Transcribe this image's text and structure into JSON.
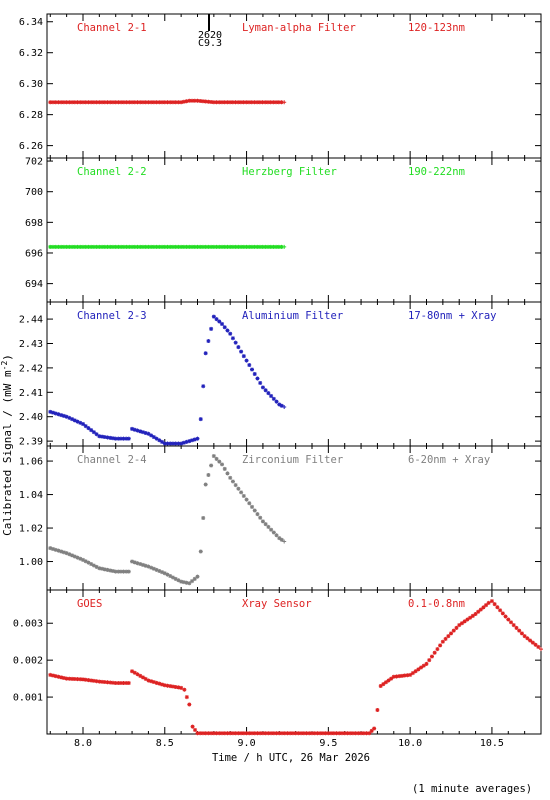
{
  "footer_note": "(1 minute averages)",
  "y_axis_label": "Calibrated Signal / (mW m",
  "y_axis_label_sup": "-2",
  "y_axis_label_end": ")",
  "x_axis_label": "Time / h UTC, 26 Mar 2026",
  "marker": {
    "line1": "2620",
    "line2": "C9.3"
  },
  "chart_data": [
    {
      "type": "scatter",
      "panel": "Channel 2-1",
      "label_left": "Channel 2-1",
      "label_mid": "Lyman-alpha Filter",
      "label_right": "120-123nm",
      "color": "#dd2222",
      "ylim": [
        6.252,
        6.345
      ],
      "yticks": [
        6.26,
        6.28,
        6.3,
        6.32,
        6.34
      ],
      "ytick_labels": [
        "6.26",
        "6.28",
        "6.30",
        "6.32",
        "6.34"
      ],
      "x": [
        7.8,
        8.5,
        8.6,
        8.65,
        8.7,
        8.8,
        9.23
      ],
      "y": [
        6.288,
        6.288,
        6.288,
        6.289,
        6.289,
        6.288,
        6.288
      ]
    },
    {
      "type": "scatter",
      "panel": "Channel 2-2",
      "label_left": "Channel 2-2",
      "label_mid": "Herzberg Filter",
      "label_right": "190-222nm",
      "color": "#22dd22",
      "ylim": [
        692.8,
        702.2
      ],
      "yticks": [
        694,
        696,
        698,
        700,
        702
      ],
      "ytick_labels": [
        "694",
        "696",
        "698",
        "700",
        "702"
      ],
      "x": [
        7.8,
        8.0,
        8.5,
        9.0,
        9.23
      ],
      "y": [
        696.4,
        696.4,
        696.4,
        696.4,
        696.4
      ]
    },
    {
      "type": "scatter",
      "panel": "Channel 2-3",
      "label_left": "Channel 2-3",
      "label_mid": "Aluminium Filter",
      "label_right": "17-80nm + Xray",
      "color": "#2222bb",
      "ylim": [
        2.388,
        2.447
      ],
      "yticks": [
        2.39,
        2.4,
        2.41,
        2.42,
        2.43,
        2.44
      ],
      "ytick_labels": [
        "2.39",
        "2.40",
        "2.41",
        "2.42",
        "2.43",
        "2.44"
      ],
      "x": [
        7.8,
        7.9,
        8.0,
        8.1,
        8.2,
        8.28,
        8.3,
        8.4,
        8.45,
        8.5,
        8.6,
        8.65,
        8.7,
        8.72,
        8.75,
        8.8,
        8.85,
        8.9,
        9.0,
        9.1,
        9.2,
        9.23
      ],
      "y": [
        2.402,
        2.4,
        2.397,
        2.392,
        2.391,
        2.391,
        2.395,
        2.393,
        2.391,
        2.389,
        2.389,
        2.39,
        2.391,
        2.399,
        2.426,
        2.441,
        2.438,
        2.434,
        2.423,
        2.412,
        2.405,
        2.404
      ]
    },
    {
      "type": "scatter",
      "panel": "Channel 2-4",
      "label_left": "Channel 2-4",
      "label_mid": "Zirconium Filter",
      "label_right": "6-20nm + Xray",
      "color": "#808080",
      "ylim": [
        0.983,
        1.069
      ],
      "yticks": [
        1.0,
        1.02,
        1.04,
        1.06
      ],
      "ytick_labels": [
        "1.00",
        "1.02",
        "1.04",
        "1.06"
      ],
      "x": [
        7.8,
        7.9,
        8.0,
        8.1,
        8.2,
        8.28,
        8.3,
        8.4,
        8.5,
        8.6,
        8.65,
        8.7,
        8.72,
        8.75,
        8.8,
        8.85,
        8.9,
        9.0,
        9.1,
        9.2,
        9.23
      ],
      "y": [
        1.008,
        1.005,
        1.001,
        0.996,
        0.994,
        0.994,
        1.0,
        0.997,
        0.993,
        0.988,
        0.987,
        0.991,
        1.006,
        1.046,
        1.063,
        1.058,
        1.05,
        1.037,
        1.024,
        1.014,
        1.012
      ]
    },
    {
      "type": "scatter",
      "panel": "GOES",
      "label_left": "GOES",
      "label_mid": "Xray Sensor",
      "label_right": "0.1-0.8nm",
      "color": "#dd2222",
      "ylim": [
        0.0,
        0.0039
      ],
      "yticks": [
        0.001,
        0.002,
        0.003
      ],
      "ytick_labels": [
        "0.001",
        "0.002",
        "0.003"
      ],
      "x": [
        7.8,
        7.9,
        8.0,
        8.1,
        8.2,
        8.28,
        8.3,
        8.4,
        8.5,
        8.6,
        8.62,
        8.65,
        8.67,
        8.7,
        9.0,
        9.5,
        9.75,
        9.78,
        9.8,
        9.82,
        9.9,
        10.0,
        10.1,
        10.2,
        10.3,
        10.4,
        10.48,
        10.5,
        10.6,
        10.7,
        10.8
      ],
      "y": [
        0.0016,
        0.0015,
        0.00148,
        0.00142,
        0.00138,
        0.00138,
        0.0017,
        0.00145,
        0.00132,
        0.00125,
        0.0012,
        0.0008,
        0.0002,
        2e-05,
        2e-05,
        2e-05,
        2e-05,
        0.00015,
        0.00065,
        0.0013,
        0.00155,
        0.0016,
        0.0019,
        0.0025,
        0.00295,
        0.00325,
        0.00355,
        0.0036,
        0.0031,
        0.00265,
        0.0023
      ]
    }
  ],
  "x_axis": {
    "xlim": [
      7.78,
      10.8
    ],
    "xticks": [
      8.0,
      8.5,
      9.0,
      9.5,
      10.0,
      10.5
    ],
    "xtick_labels": [
      "8.0",
      "8.5",
      "9.0",
      "9.5",
      "10.0",
      "10.5"
    ]
  }
}
